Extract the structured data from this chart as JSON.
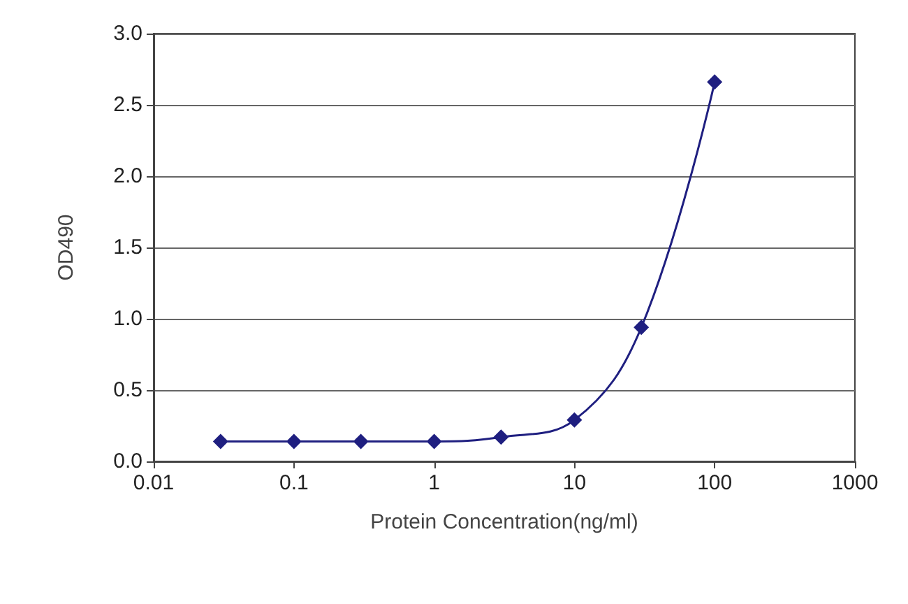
{
  "chart_data": {
    "type": "line",
    "xlabel": "Protein Concentration(ng/ml)",
    "ylabel": "OD490",
    "x": [
      0.03,
      0.1,
      0.3,
      1,
      3,
      10,
      30,
      100
    ],
    "series": [
      {
        "color": "#1f1f80",
        "values": [
          0.14,
          0.14,
          0.14,
          0.14,
          0.17,
          0.29,
          0.94,
          2.66
        ]
      }
    ],
    "log": "x",
    "xlim": [
      0.01,
      1000
    ],
    "xticks": [
      0.01,
      0.1,
      1,
      10,
      100,
      1000
    ],
    "ylim": [
      0,
      3
    ],
    "yticks": [
      {
        "value": 0,
        "label": "0.0"
      },
      {
        "value": 0.5,
        "label": "0.5"
      },
      {
        "value": 1,
        "label": "1.0"
      },
      {
        "value": 1.5,
        "label": "1.5"
      },
      {
        "value": 2,
        "label": "2.0"
      },
      {
        "value": 2.5,
        "label": "2.5"
      },
      {
        "value": 3,
        "label": "3.0"
      }
    ],
    "grid": "y",
    "marker": "diamond",
    "line_style": "solid"
  }
}
